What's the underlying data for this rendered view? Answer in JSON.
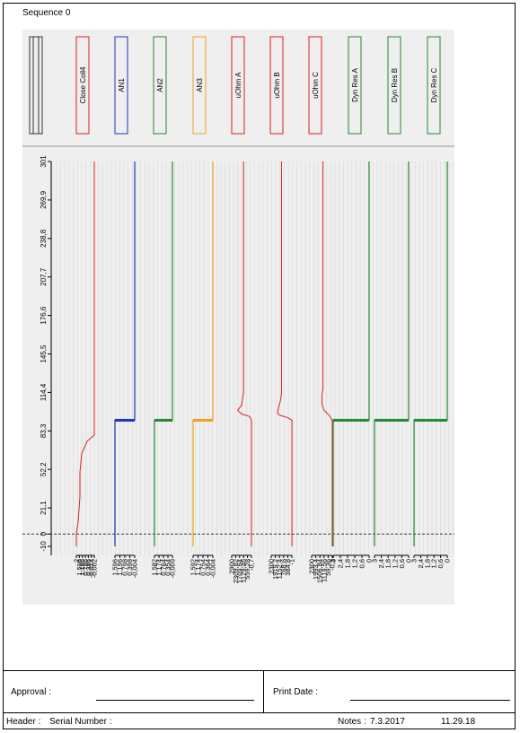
{
  "sequence_title": "Sequence 0",
  "footer": {
    "approval_label": "Approval :",
    "print_date_label": "Print Date :",
    "header_label": "Header :",
    "serial_label": "Serial Number :",
    "notes_label": "Notes :",
    "notes_date": "7.3.2017",
    "time": "11.29.18"
  },
  "chart_data": {
    "type": "line",
    "orientation": "vertical-time",
    "y_ticks": [
      "-10",
      "0",
      "21,1",
      "52,2",
      "83,3",
      "114,4",
      "145,5",
      "176,6",
      "207,7",
      "238,8",
      "269,9",
      "301"
    ],
    "y_tick_values": [
      -10,
      0,
      21.1,
      52.2,
      83.3,
      114.4,
      145.5,
      176.6,
      207.7,
      238.8,
      269.9,
      301
    ],
    "ylim": [
      -10,
      301
    ],
    "grid": true,
    "channels": [
      {
        "name": "",
        "color": "#333333",
        "ticks": []
      },
      {
        "name": "Close Coil4",
        "color": "#dd2222",
        "ticks": [
          "2",
          "1,596",
          "1,186",
          "0,786",
          "0,386",
          "-0,014",
          "-0,002"
        ],
        "trace": [
          [
            0,
            -10
          ],
          [
            0,
            0
          ],
          [
            0.1,
            10
          ],
          [
            0.15,
            20
          ],
          [
            0.2,
            30
          ],
          [
            0.2,
            50
          ],
          [
            0.3,
            65
          ],
          [
            0.6,
            75
          ],
          [
            1.0,
            80
          ],
          [
            1.0,
            83
          ],
          [
            1.0,
            301
          ]
        ]
      },
      {
        "name": "AN1",
        "color": "#2233bb",
        "ticks": [
          "1,596",
          "1,196",
          "0,798",
          "0,398",
          "-0,004"
        ],
        "trace": [
          [
            0,
            -10
          ],
          [
            0,
            92
          ],
          [
            1,
            92
          ],
          [
            1,
            301
          ]
        ]
      },
      {
        "name": "AN2",
        "color": "#228833",
        "ticks": [
          "1,582",
          "1,174",
          "0,764",
          "0,354",
          "-0,009"
        ],
        "trace": [
          [
            0,
            -10
          ],
          [
            0,
            92
          ],
          [
            1,
            92
          ],
          [
            1,
            301
          ]
        ]
      },
      {
        "name": "AN3",
        "color": "#f0a020",
        "ticks": [
          "1,592",
          "1,174",
          "0,754",
          "0,364",
          "-0,004"
        ],
        "trace": [
          [
            0,
            -10
          ],
          [
            0,
            92
          ],
          [
            1,
            92
          ],
          [
            1,
            301
          ]
        ]
      },
      {
        "name": "uOhm A",
        "color": "#dd2222",
        "ticks": [
          "2900",
          "2309,82",
          "1709,64",
          "1129,46",
          "559,28",
          "-0,7"
        ],
        "trace": [
          [
            1,
            -10
          ],
          [
            1,
            92
          ],
          [
            0.9,
            95
          ],
          [
            0.5,
            97
          ],
          [
            0.3,
            100
          ],
          [
            0.5,
            104
          ],
          [
            0.55,
            110
          ],
          [
            0.6,
            114
          ],
          [
            0.6,
            301
          ]
        ]
      },
      {
        "name": "uOhm B",
        "color": "#dd2222",
        "ticks": [
          "2300",
          "1919,2",
          "1152,4",
          "768,6",
          "384,8",
          "-1"
        ],
        "trace": [
          [
            1,
            -10
          ],
          [
            1,
            92
          ],
          [
            0.8,
            94
          ],
          [
            0.4,
            96
          ],
          [
            0.3,
            98
          ],
          [
            0.35,
            102
          ],
          [
            0.45,
            108
          ],
          [
            0.5,
            114
          ],
          [
            0.5,
            301
          ]
        ]
      },
      {
        "name": "uOhm C",
        "color": "#dd2222",
        "ticks": [
          "2300",
          "1993,4",
          "1506,84",
          "1119,56",
          "59,36",
          "-0,3"
        ],
        "trace": [
          [
            1,
            -10
          ],
          [
            1,
            92
          ],
          [
            0.85,
            96
          ],
          [
            0.6,
            100
          ],
          [
            0.5,
            105
          ],
          [
            0.5,
            112
          ],
          [
            0.55,
            118
          ],
          [
            0.55,
            301
          ]
        ]
      },
      {
        "name": "Dyn Res A",
        "color": "#228833",
        "ticks": [
          "3",
          "2,4",
          "1,8",
          "1,2",
          "0,6",
          "0"
        ],
        "trace": [
          [
            0,
            -10
          ],
          [
            0,
            92
          ],
          [
            1,
            92
          ],
          [
            1,
            301
          ]
        ]
      },
      {
        "name": "Dyn Res B",
        "color": "#228833",
        "ticks": [
          "3",
          "2,4",
          "1,8",
          "1,2",
          "0,6",
          "0"
        ],
        "trace": [
          [
            0,
            -10
          ],
          [
            0,
            92
          ],
          [
            1,
            92
          ],
          [
            1,
            301
          ]
        ]
      },
      {
        "name": "Dyn Res C",
        "color": "#228833",
        "ticks": [
          "3",
          "2,4",
          "1,8",
          "1,2",
          "0,6",
          "0"
        ],
        "trace": [
          [
            0,
            -10
          ],
          [
            0,
            92
          ],
          [
            1,
            92
          ],
          [
            1,
            301
          ]
        ]
      }
    ]
  }
}
